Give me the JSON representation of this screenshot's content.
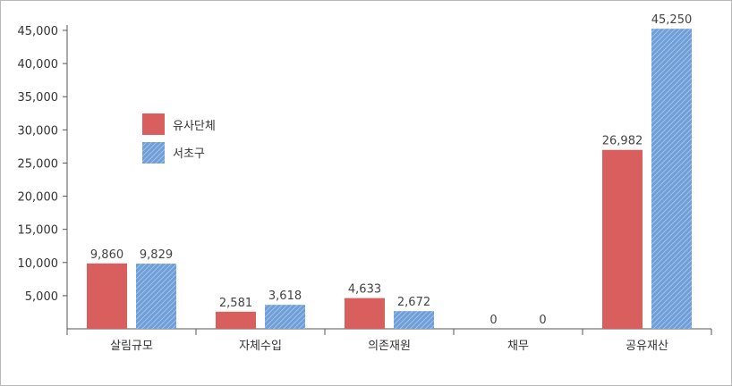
{
  "chart_data": {
    "type": "bar",
    "categories": [
      "살림규모",
      "자체수입",
      "의존재원",
      "채무",
      "공유재산"
    ],
    "series": [
      {
        "name": "유사단체",
        "values": [
          9860,
          2581,
          4633,
          0,
          26982
        ],
        "labels": [
          "9,860",
          "2,581",
          "4,633",
          "0",
          "26,982"
        ],
        "color": "#d95f5f",
        "pattern": "solid"
      },
      {
        "name": "서초구",
        "values": [
          9829,
          3618,
          2672,
          0,
          45250
        ],
        "labels": [
          "9,829",
          "3,618",
          "2,672",
          "0",
          "45,250"
        ],
        "color": "#6f9fd8",
        "pattern": "diagonal-hatch"
      }
    ],
    "yticks": [
      "5,000",
      "10,000",
      "15,000",
      "20,000",
      "25,000",
      "30,000",
      "35,000",
      "40,000",
      "45,000"
    ],
    "ylim": [
      0,
      45000
    ],
    "xlabel": "",
    "ylabel": "",
    "title": "",
    "grid": false,
    "legend": "upper-left"
  }
}
